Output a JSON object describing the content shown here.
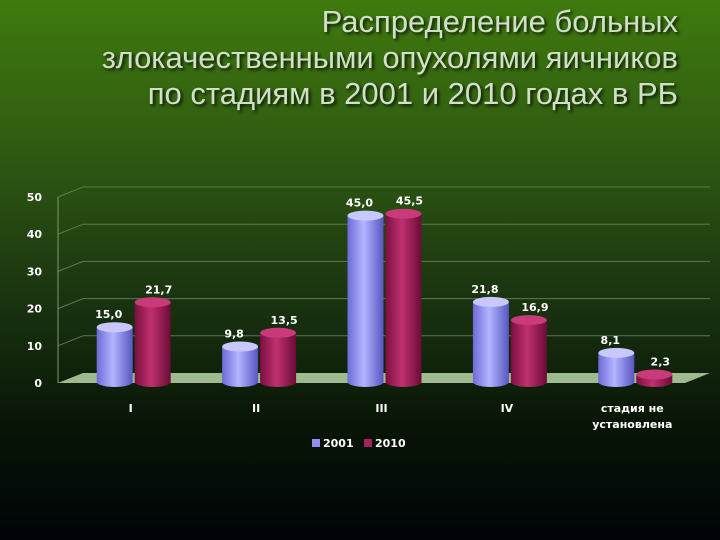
{
  "title_lines": [
    "Распределение больных",
    "злокачественными опухолями яичников",
    "по стадиям в 2001 и 2010 годах в РБ"
  ],
  "colors": {
    "s2001": "#8f8ff0",
    "s2010": "#a0245a",
    "floor": "#b7d6a6"
  },
  "chart_data": {
    "type": "bar",
    "categories": [
      "I",
      "II",
      "III",
      "IV",
      "стадия не установлена"
    ],
    "category_lines": [
      [
        "I"
      ],
      [
        "II"
      ],
      [
        "III"
      ],
      [
        "IV"
      ],
      [
        "стадия не",
        "установлена"
      ]
    ],
    "series": [
      {
        "name": "2001",
        "values": [
          15.0,
          9.8,
          45.0,
          21.8,
          8.1
        ],
        "labels": [
          "15,0",
          "9,8",
          "45,0",
          "21,8",
          "8,1"
        ]
      },
      {
        "name": "2010",
        "values": [
          21.7,
          13.5,
          45.5,
          16.9,
          2.3
        ],
        "labels": [
          "21,7",
          "13,5",
          "45,5",
          "16,9",
          "2,3"
        ]
      }
    ],
    "yticks": [
      "0",
      "10",
      "20",
      "30",
      "40",
      "50"
    ],
    "ylim": [
      0,
      50
    ],
    "legend_position": "bottom",
    "grid": true
  }
}
